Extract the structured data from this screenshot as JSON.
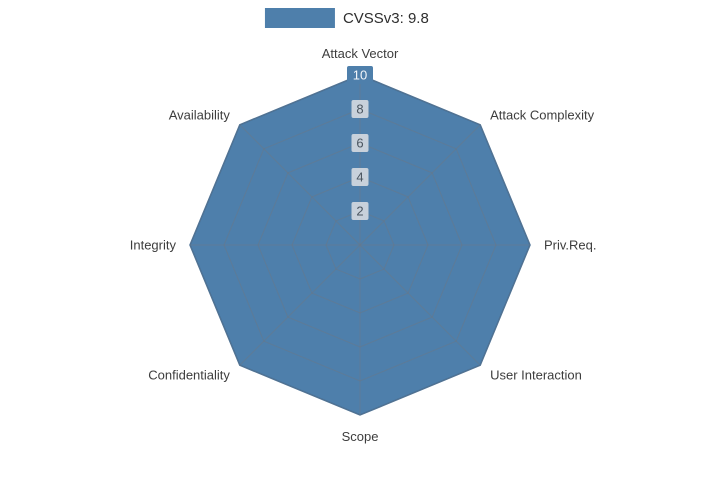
{
  "legend": {
    "label": "CVSSv3: 9.8"
  },
  "chart_data": {
    "type": "radar",
    "title": "",
    "categories": [
      "Attack Vector",
      "Attack Complexity",
      "Priv.Req.",
      "User Interaction",
      "Scope",
      "Confidentiality",
      "Integrity",
      "Availability"
    ],
    "series": [
      {
        "name": "CVSSv3: 9.8",
        "values": [
          10,
          10,
          10,
          10,
          10,
          10,
          10,
          10
        ]
      }
    ],
    "ticks": [
      2,
      4,
      6,
      8,
      10
    ],
    "rmax": 10,
    "grid": true,
    "legend_position": "top-center",
    "colors": {
      "fill": "#4e7fab",
      "edge": "#3f6e9a",
      "grid": "#6b7785",
      "axis_label": "#3d3d3d",
      "tick_bg": "#d2d8de",
      "tick_text": "#4a5560",
      "tick_max_bg": "#4e7fab",
      "tick_max_text": "#f2f6fa"
    }
  }
}
